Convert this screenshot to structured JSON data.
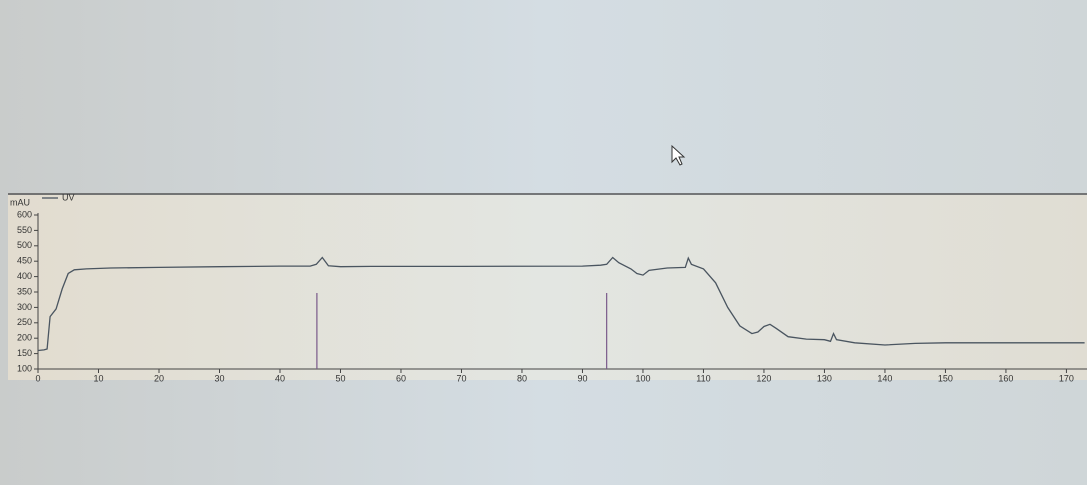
{
  "chart_data": {
    "type": "line",
    "y_label": "mAU",
    "x": [
      0,
      1,
      1.5,
      2,
      3,
      4,
      5,
      6,
      8,
      12,
      20,
      30,
      40,
      45,
      46,
      47,
      48,
      50,
      55,
      70,
      90,
      93,
      94,
      95,
      96,
      98,
      99,
      100,
      101,
      104,
      107,
      107.5,
      108,
      110,
      112,
      114,
      116,
      118,
      119,
      120,
      121,
      122,
      124,
      127,
      130,
      131,
      131.5,
      132,
      135,
      140,
      145,
      150,
      160,
      170,
      173
    ],
    "series": [
      {
        "name": "UV",
        "color": "#4a5560",
        "values": [
          160,
          162,
          165,
          270,
          295,
          360,
          410,
          422,
          425,
          428,
          430,
          432,
          434,
          434,
          440,
          462,
          435,
          432,
          433,
          433,
          434,
          437,
          440,
          462,
          445,
          425,
          410,
          405,
          420,
          428,
          430,
          460,
          440,
          425,
          380,
          300,
          240,
          215,
          220,
          238,
          245,
          232,
          205,
          197,
          195,
          190,
          215,
          195,
          185,
          178,
          183,
          185,
          185,
          185,
          185
        ]
      }
    ],
    "event_marks": {
      "color": "#7a5a8a",
      "x": [
        46.1,
        94.0
      ]
    },
    "xlim": [
      0,
      173.4
    ],
    "xticks": [
      0,
      10,
      20,
      30,
      40,
      50,
      60,
      70,
      80,
      90,
      100,
      110,
      120,
      130,
      140,
      150,
      160,
      170
    ],
    "ylim": [
      100,
      600
    ],
    "yticks": [
      100,
      150,
      200,
      250,
      300,
      350,
      400,
      450,
      500,
      550,
      600
    ],
    "grid": false
  }
}
